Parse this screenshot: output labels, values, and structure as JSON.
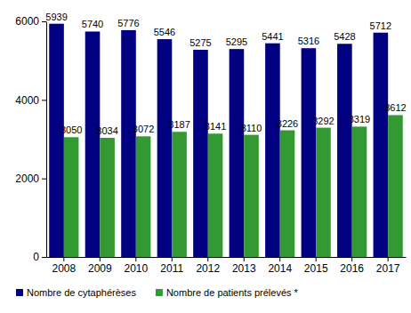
{
  "chart_data": {
    "type": "bar",
    "categories": [
      "2008",
      "2009",
      "2010",
      "2011",
      "2012",
      "2013",
      "2014",
      "2015",
      "2016",
      "2017"
    ],
    "series": [
      {
        "name": "Nombre de cytaphérèses",
        "color": "#000080",
        "values": [
          5939,
          5740,
          5776,
          5546,
          5275,
          5295,
          5441,
          5316,
          5428,
          5712
        ]
      },
      {
        "name": "Nombre de patients prélevés *",
        "color": "#339933",
        "values": [
          3050,
          3034,
          3072,
          3187,
          3141,
          3110,
          3226,
          3292,
          3319,
          3612
        ]
      }
    ],
    "ylim": [
      0,
      6000
    ],
    "yticks": [
      0,
      2000,
      4000,
      6000
    ],
    "data_labels": true,
    "grid": false,
    "legend": "bottom"
  }
}
